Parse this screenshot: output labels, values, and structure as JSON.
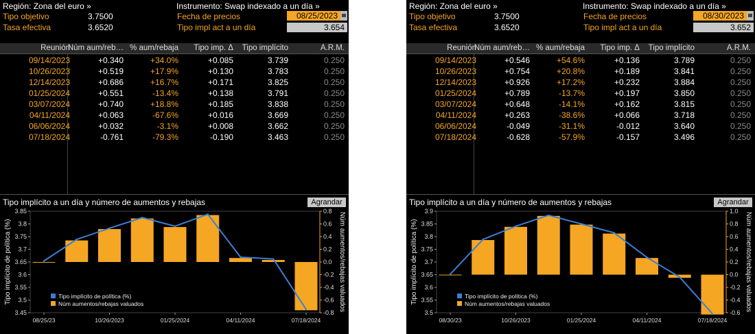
{
  "panels": [
    {
      "region_label": "Región: Zona del euro »",
      "instrument_label": "Instrumento: Swap indexado a un día »",
      "target_rate_label": "Tipo objetivo",
      "target_rate_value": "3.7500",
      "effective_rate_label": "Tasa efectiva",
      "effective_rate_value": "3.6520",
      "price_date_label": "Fecha de precios",
      "price_date_value": "08/25/2023",
      "implied_rate_label": "Tipo impl act a un día",
      "implied_rate_value": "3.654",
      "table": {
        "headers": [
          "Reunión",
          "Núm aum/reb…",
          "% aum/rebaja",
          "Tipo imp. Δ",
          "Tipo implícito",
          "A.R.M."
        ],
        "rows": [
          [
            "09/14/2023",
            "+0.340",
            "+34.0%",
            "+0.085",
            "3.739",
            "0.250"
          ],
          [
            "10/26/2023",
            "+0.519",
            "+17.9%",
            "+0.130",
            "3.783",
            "0.250"
          ],
          [
            "12/14/2023",
            "+0.686",
            "+16.7%",
            "+0.171",
            "3.825",
            "0.250"
          ],
          [
            "01/25/2024",
            "+0.551",
            "-13.4%",
            "+0.138",
            "3.791",
            "0.250"
          ],
          [
            "03/07/2024",
            "+0.740",
            "+18.8%",
            "+0.185",
            "3.838",
            "0.250"
          ],
          [
            "04/11/2024",
            "+0.063",
            "-67.6%",
            "+0.016",
            "3.669",
            "0.250"
          ],
          [
            "06/06/2024",
            "+0.032",
            "-3.1%",
            "+0.008",
            "3.662",
            "0.250"
          ],
          [
            "07/18/2024",
            "-0.761",
            "-79.3%",
            "-0.190",
            "3.463",
            "0.250"
          ]
        ]
      },
      "chart_title": "Tipo implícito a un día y número de aumentos y rebajas",
      "expand_button": "Agrandar",
      "chart_data": {
        "type": "bar+line",
        "x_categories": [
          "08/25/23",
          "09/14/2023",
          "10/26/2023",
          "12/14/2023",
          "01/25/2024",
          "03/07/2024",
          "04/11/2024",
          "06/06/2024",
          "07/18/2024"
        ],
        "x_tick_labels": [
          "08/25/23",
          "10/26/2023",
          "01/25/2024",
          "04/11/2024",
          "07/18/2024"
        ],
        "series": [
          {
            "name": "Tipo implícito de política (%)",
            "type": "line",
            "axis": "left",
            "color": "#3a7fd5",
            "values": [
              3.654,
              3.739,
              3.783,
              3.825,
              3.791,
              3.838,
              3.669,
              3.662,
              3.463
            ]
          },
          {
            "name": "Núm aumentos/rebajas valuados",
            "type": "bar",
            "axis": "right",
            "color": "#f5a623",
            "values": [
              0.0,
              0.34,
              0.519,
              0.686,
              0.551,
              0.74,
              0.063,
              0.032,
              -0.761
            ]
          }
        ],
        "y_left_label": "Tipo implícito de política (%)",
        "y_left_ticks": [
          "3.45",
          "3.5",
          "3.55",
          "3.6",
          "3.65",
          "3.7",
          "3.75",
          "3.8",
          "3.85"
        ],
        "y_left_range": [
          3.45,
          3.85
        ],
        "y_right_label": "Núm aumentos/rebajas valuados",
        "y_right_ticks": [
          "-0.8",
          "-0.6",
          "-0.4",
          "-0.2",
          "0.0",
          "0.2",
          "0.4",
          "0.6",
          "0.8"
        ],
        "y_right_range": [
          -0.8,
          0.8
        ],
        "legend_placement": "bottom-left"
      }
    },
    {
      "region_label": "Región: Zona del euro »",
      "instrument_label": "Instrumento: Swap indexado a un día »",
      "target_rate_label": "Tipo objetivo",
      "target_rate_value": "3.7500",
      "effective_rate_label": "Tasa efectiva",
      "effective_rate_value": "3.6520",
      "price_date_label": "Fecha de precios",
      "price_date_value": "08/30/2023",
      "implied_rate_label": "Tipo impl act a un día",
      "implied_rate_value": "3.652",
      "table": {
        "headers": [
          "Reunión",
          "Núm aum/reb…",
          "% aum/rebaja",
          "Tipo imp. Δ",
          "Tipo implícito",
          "A.R.M."
        ],
        "rows": [
          [
            "09/14/2023",
            "+0.546",
            "+54.6%",
            "+0.136",
            "3.789",
            "0.250"
          ],
          [
            "10/26/2023",
            "+0.754",
            "+20.8%",
            "+0.189",
            "3.841",
            "0.250"
          ],
          [
            "12/14/2023",
            "+0.926",
            "+17.2%",
            "+0.232",
            "3.884",
            "0.250"
          ],
          [
            "01/25/2024",
            "+0.789",
            "-13.7%",
            "+0.197",
            "3.850",
            "0.250"
          ],
          [
            "03/07/2024",
            "+0.648",
            "-14.1%",
            "+0.162",
            "3.815",
            "0.250"
          ],
          [
            "04/11/2024",
            "+0.263",
            "-38.6%",
            "+0.066",
            "3.718",
            "0.250"
          ],
          [
            "06/06/2024",
            "-0.049",
            "-31.1%",
            "-0.012",
            "3.640",
            "0.250"
          ],
          [
            "07/18/2024",
            "-0.628",
            "-57.9%",
            "-0.157",
            "3.496",
            "0.250"
          ]
        ]
      },
      "chart_title": "Tipo implícito a un día y número de aumentos y rebajas",
      "expand_button": "Agrandar",
      "chart_data": {
        "type": "bar+line",
        "x_categories": [
          "08/30/23",
          "09/14/2023",
          "10/26/2023",
          "12/14/2023",
          "01/25/2024",
          "03/07/2024",
          "04/11/2024",
          "06/06/2024",
          "07/18/2024"
        ],
        "x_tick_labels": [
          "08/30/23",
          "10/26/2023",
          "01/25/2024",
          "04/11/2024",
          "07/18/2024"
        ],
        "series": [
          {
            "name": "Tipo implícito de política (%)",
            "type": "line",
            "axis": "left",
            "color": "#3a7fd5",
            "values": [
              3.652,
              3.789,
              3.841,
              3.884,
              3.85,
              3.815,
              3.718,
              3.64,
              3.496
            ]
          },
          {
            "name": "Núm aumentos/rebajas valuados",
            "type": "bar",
            "axis": "right",
            "color": "#f5a623",
            "values": [
              0.0,
              0.546,
              0.754,
              0.926,
              0.789,
              0.648,
              0.263,
              -0.049,
              -0.628
            ]
          }
        ],
        "y_left_label": "Tipo implícito de política (%)",
        "y_left_ticks": [
          "3.5",
          "3.55",
          "3.6",
          "3.65",
          "3.7",
          "3.75",
          "3.8",
          "3.85",
          "3.9"
        ],
        "y_left_range": [
          3.5,
          3.9
        ],
        "y_right_label": "Núm aumentos/rebajas valuados",
        "y_right_ticks": [
          "-0.6",
          "-0.4",
          "-0.2",
          "0.0",
          "0.2",
          "0.4",
          "0.6",
          "0.8",
          "1.0"
        ],
        "y_right_range": [
          -0.6,
          1.0
        ],
        "legend_placement": "bottom-left"
      }
    }
  ]
}
